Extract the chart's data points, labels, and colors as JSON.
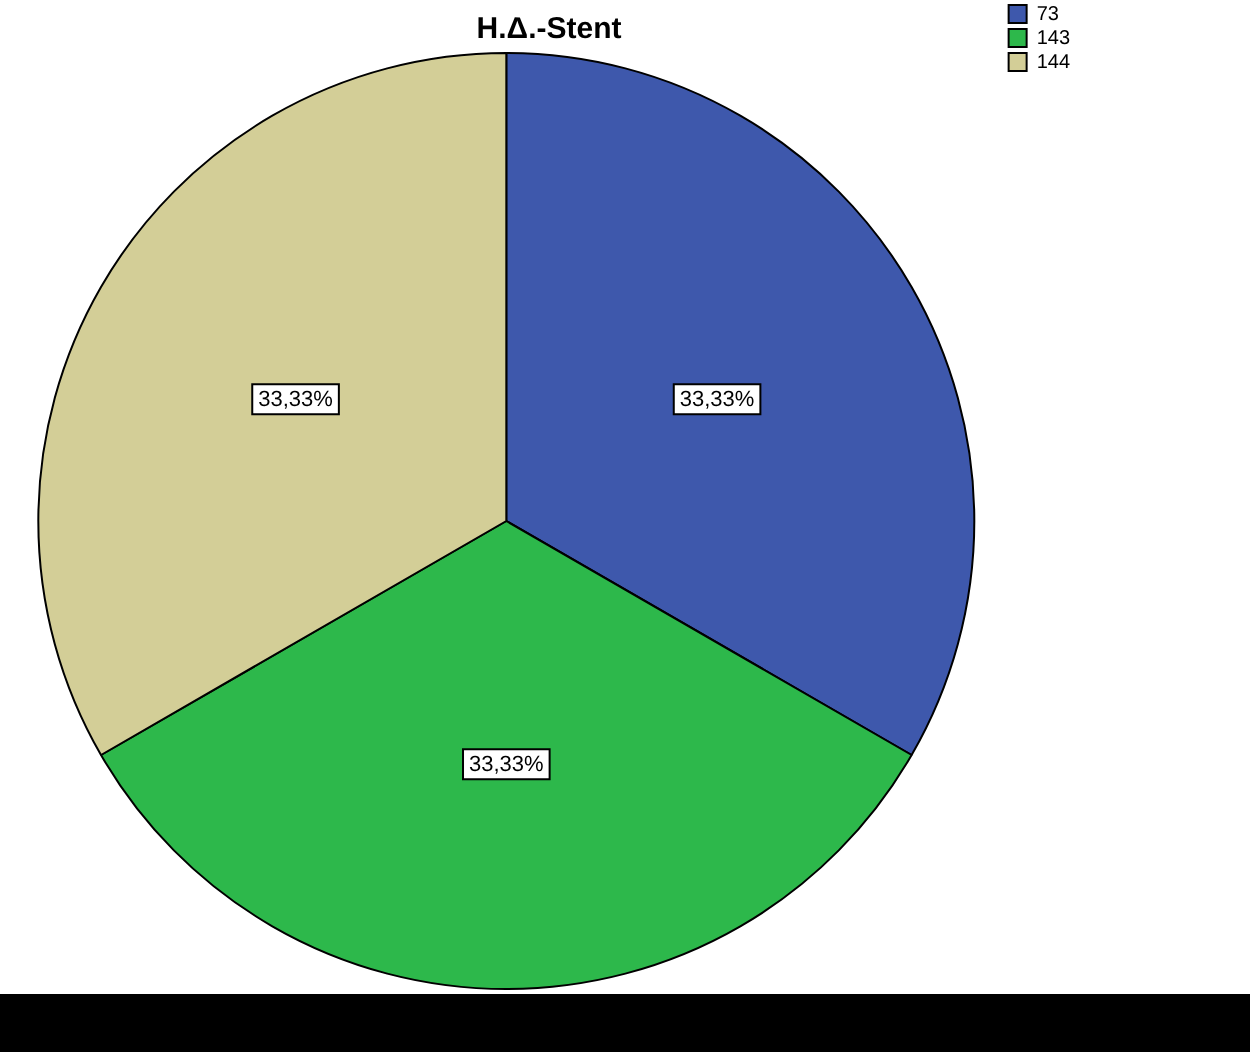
{
  "chart_data": {
    "type": "pie",
    "title": "Η.Δ.-Stent",
    "categories": [
      "73",
      "143",
      "144"
    ],
    "values": [
      33.33,
      33.33,
      33.33
    ],
    "value_labels": [
      "33,33%",
      "33,33%",
      "33,33%"
    ],
    "colors": [
      "#3e58ac",
      "#2db84b",
      "#d3ce97"
    ],
    "legend": "top right"
  }
}
